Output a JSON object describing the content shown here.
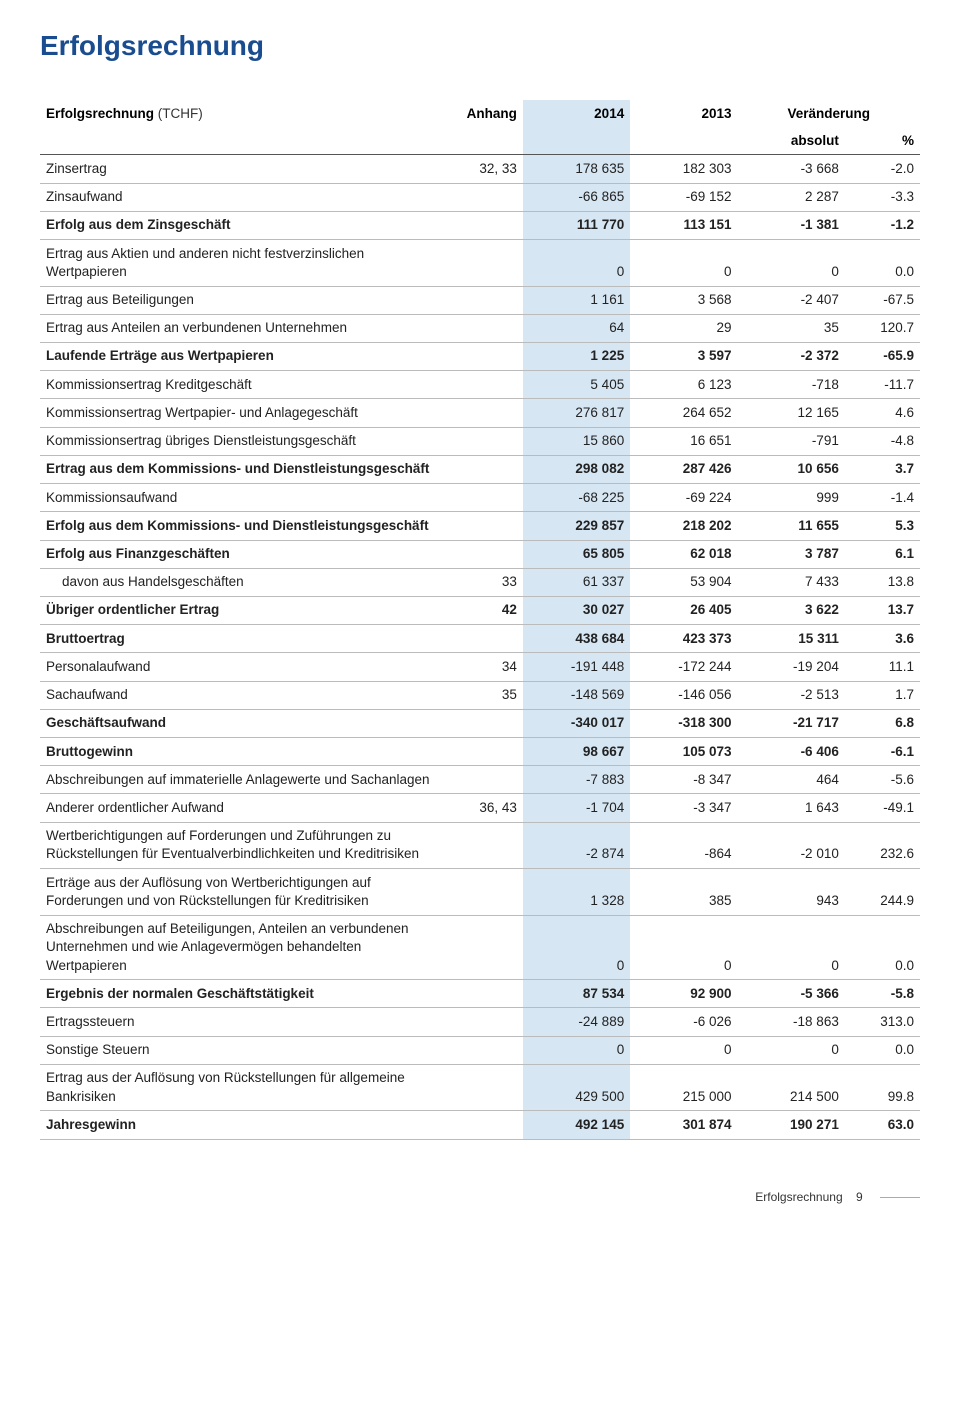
{
  "title": "Erfolgsrechnung",
  "footer": {
    "label": "Erfolgsrechnung",
    "page": "9"
  },
  "colors": {
    "title": "#1a4d8f",
    "highlight_bg": "#d6e6f2",
    "rule": "#bbbbbb",
    "footer_accent": "#f0a030"
  },
  "table": {
    "head": {
      "label": "Erfolgsrechnung",
      "unit": "(TCHF)",
      "anhang": "Anhang",
      "y2014": "2014",
      "y2013": "2013",
      "change": "Veränderung",
      "abs": "absolut",
      "pct": "%"
    },
    "rows": [
      {
        "label": "Zinsertrag",
        "anh": "32, 33",
        "v14": "178 635",
        "v13": "182 303",
        "abs": "-3 668",
        "pct": "-2.0"
      },
      {
        "label": "Zinsaufwand",
        "anh": "",
        "v14": "-66 865",
        "v13": "-69 152",
        "abs": "2 287",
        "pct": "-3.3"
      },
      {
        "label": "Erfolg aus dem Zinsgeschäft",
        "anh": "",
        "v14": "111 770",
        "v13": "113 151",
        "abs": "-1 381",
        "pct": "-1.2",
        "bold": true
      },
      {
        "label": "Ertrag aus Aktien und anderen nicht festverzinslichen Wertpapieren",
        "anh": "",
        "v14": "0",
        "v13": "0",
        "abs": "0",
        "pct": "0.0"
      },
      {
        "label": "Ertrag aus Beteiligungen",
        "anh": "",
        "v14": "1 161",
        "v13": "3 568",
        "abs": "-2 407",
        "pct": "-67.5"
      },
      {
        "label": "Ertrag aus Anteilen an verbundenen Unternehmen",
        "anh": "",
        "v14": "64",
        "v13": "29",
        "abs": "35",
        "pct": "120.7"
      },
      {
        "label": "Laufende Erträge aus Wertpapieren",
        "anh": "",
        "v14": "1 225",
        "v13": "3 597",
        "abs": "-2 372",
        "pct": "-65.9",
        "bold": true
      },
      {
        "label": "Kommissionsertrag Kreditgeschäft",
        "anh": "",
        "v14": "5 405",
        "v13": "6 123",
        "abs": "-718",
        "pct": "-11.7"
      },
      {
        "label": "Kommissionsertrag Wertpapier- und Anlagegeschäft",
        "anh": "",
        "v14": "276 817",
        "v13": "264 652",
        "abs": "12 165",
        "pct": "4.6"
      },
      {
        "label": "Kommissionsertrag übriges Dienstleistungsgeschäft",
        "anh": "",
        "v14": "15 860",
        "v13": "16 651",
        "abs": "-791",
        "pct": "-4.8"
      },
      {
        "label": "Ertrag aus dem Kommissions- und Dienstleistungsgeschäft",
        "anh": "",
        "v14": "298 082",
        "v13": "287 426",
        "abs": "10 656",
        "pct": "3.7",
        "bold": true
      },
      {
        "label": "Kommissionsaufwand",
        "anh": "",
        "v14": "-68 225",
        "v13": "-69 224",
        "abs": "999",
        "pct": "-1.4"
      },
      {
        "label": "Erfolg aus dem Kommissions- und Dienstleistungsgeschäft",
        "anh": "",
        "v14": "229 857",
        "v13": "218 202",
        "abs": "11 655",
        "pct": "5.3",
        "bold": true
      },
      {
        "label": "Erfolg aus Finanzgeschäften",
        "anh": "",
        "v14": "65 805",
        "v13": "62 018",
        "abs": "3 787",
        "pct": "6.1",
        "bold": true
      },
      {
        "label": "davon aus Handelsgeschäften",
        "anh": "33",
        "v14": "61 337",
        "v13": "53 904",
        "abs": "7 433",
        "pct": "13.8",
        "indent": true
      },
      {
        "label": "Übriger ordentlicher Ertrag",
        "anh": "42",
        "v14": "30 027",
        "v13": "26 405",
        "abs": "3 622",
        "pct": "13.7",
        "bold": true
      },
      {
        "label": "Bruttoertrag",
        "anh": "",
        "v14": "438 684",
        "v13": "423 373",
        "abs": "15 311",
        "pct": "3.6",
        "bold": true
      },
      {
        "label": "Personalaufwand",
        "anh": "34",
        "v14": "-191 448",
        "v13": "-172 244",
        "abs": "-19 204",
        "pct": "11.1"
      },
      {
        "label": "Sachaufwand",
        "anh": "35",
        "v14": "-148 569",
        "v13": "-146 056",
        "abs": "-2 513",
        "pct": "1.7"
      },
      {
        "label": "Geschäftsaufwand",
        "anh": "",
        "v14": "-340 017",
        "v13": "-318 300",
        "abs": "-21 717",
        "pct": "6.8",
        "bold": true
      },
      {
        "label": "Bruttogewinn",
        "anh": "",
        "v14": "98 667",
        "v13": "105 073",
        "abs": "-6 406",
        "pct": "-6.1",
        "bold": true
      },
      {
        "label": "Abschreibungen auf immaterielle Anlagewerte und Sachanlagen",
        "anh": "",
        "v14": "-7 883",
        "v13": "-8 347",
        "abs": "464",
        "pct": "-5.6"
      },
      {
        "label": "Anderer ordentlicher Aufwand",
        "anh": "36, 43",
        "v14": "-1 704",
        "v13": "-3 347",
        "abs": "1 643",
        "pct": "-49.1"
      },
      {
        "label": "Wertberichtigungen auf Forderungen und Zuführungen zu Rückstellungen für Eventualverbindlichkeiten und Kreditrisiken",
        "anh": "",
        "v14": "-2 874",
        "v13": "-864",
        "abs": "-2 010",
        "pct": "232.6"
      },
      {
        "label": "Erträge aus der Auflösung von Wertberichtigungen auf Forderungen und von Rückstellungen für Kreditrisiken",
        "anh": "",
        "v14": "1 328",
        "v13": "385",
        "abs": "943",
        "pct": "244.9"
      },
      {
        "label": "Abschreibungen auf Beteiligungen, Anteilen an verbundenen Unternehmen und wie Anlagevermögen behandelten Wertpapieren",
        "anh": "",
        "v14": "0",
        "v13": "0",
        "abs": "0",
        "pct": "0.0"
      },
      {
        "label": "Ergebnis der normalen Geschäftstätigkeit",
        "anh": "",
        "v14": "87 534",
        "v13": "92 900",
        "abs": "-5 366",
        "pct": "-5.8",
        "bold": true
      },
      {
        "label": "Ertragssteuern",
        "anh": "",
        "v14": "-24 889",
        "v13": "-6 026",
        "abs": "-18 863",
        "pct": "313.0"
      },
      {
        "label": "Sonstige Steuern",
        "anh": "",
        "v14": "0",
        "v13": "0",
        "abs": "0",
        "pct": "0.0"
      },
      {
        "label": "Ertrag aus der Auflösung von Rückstellungen für allgemeine Bankrisiken",
        "anh": "",
        "v14": "429 500",
        "v13": "215 000",
        "abs": "214 500",
        "pct": "99.8"
      },
      {
        "label": "Jahresgewinn",
        "anh": "",
        "v14": "492 145",
        "v13": "301 874",
        "abs": "190 271",
        "pct": "63.0",
        "bold": true
      }
    ]
  }
}
